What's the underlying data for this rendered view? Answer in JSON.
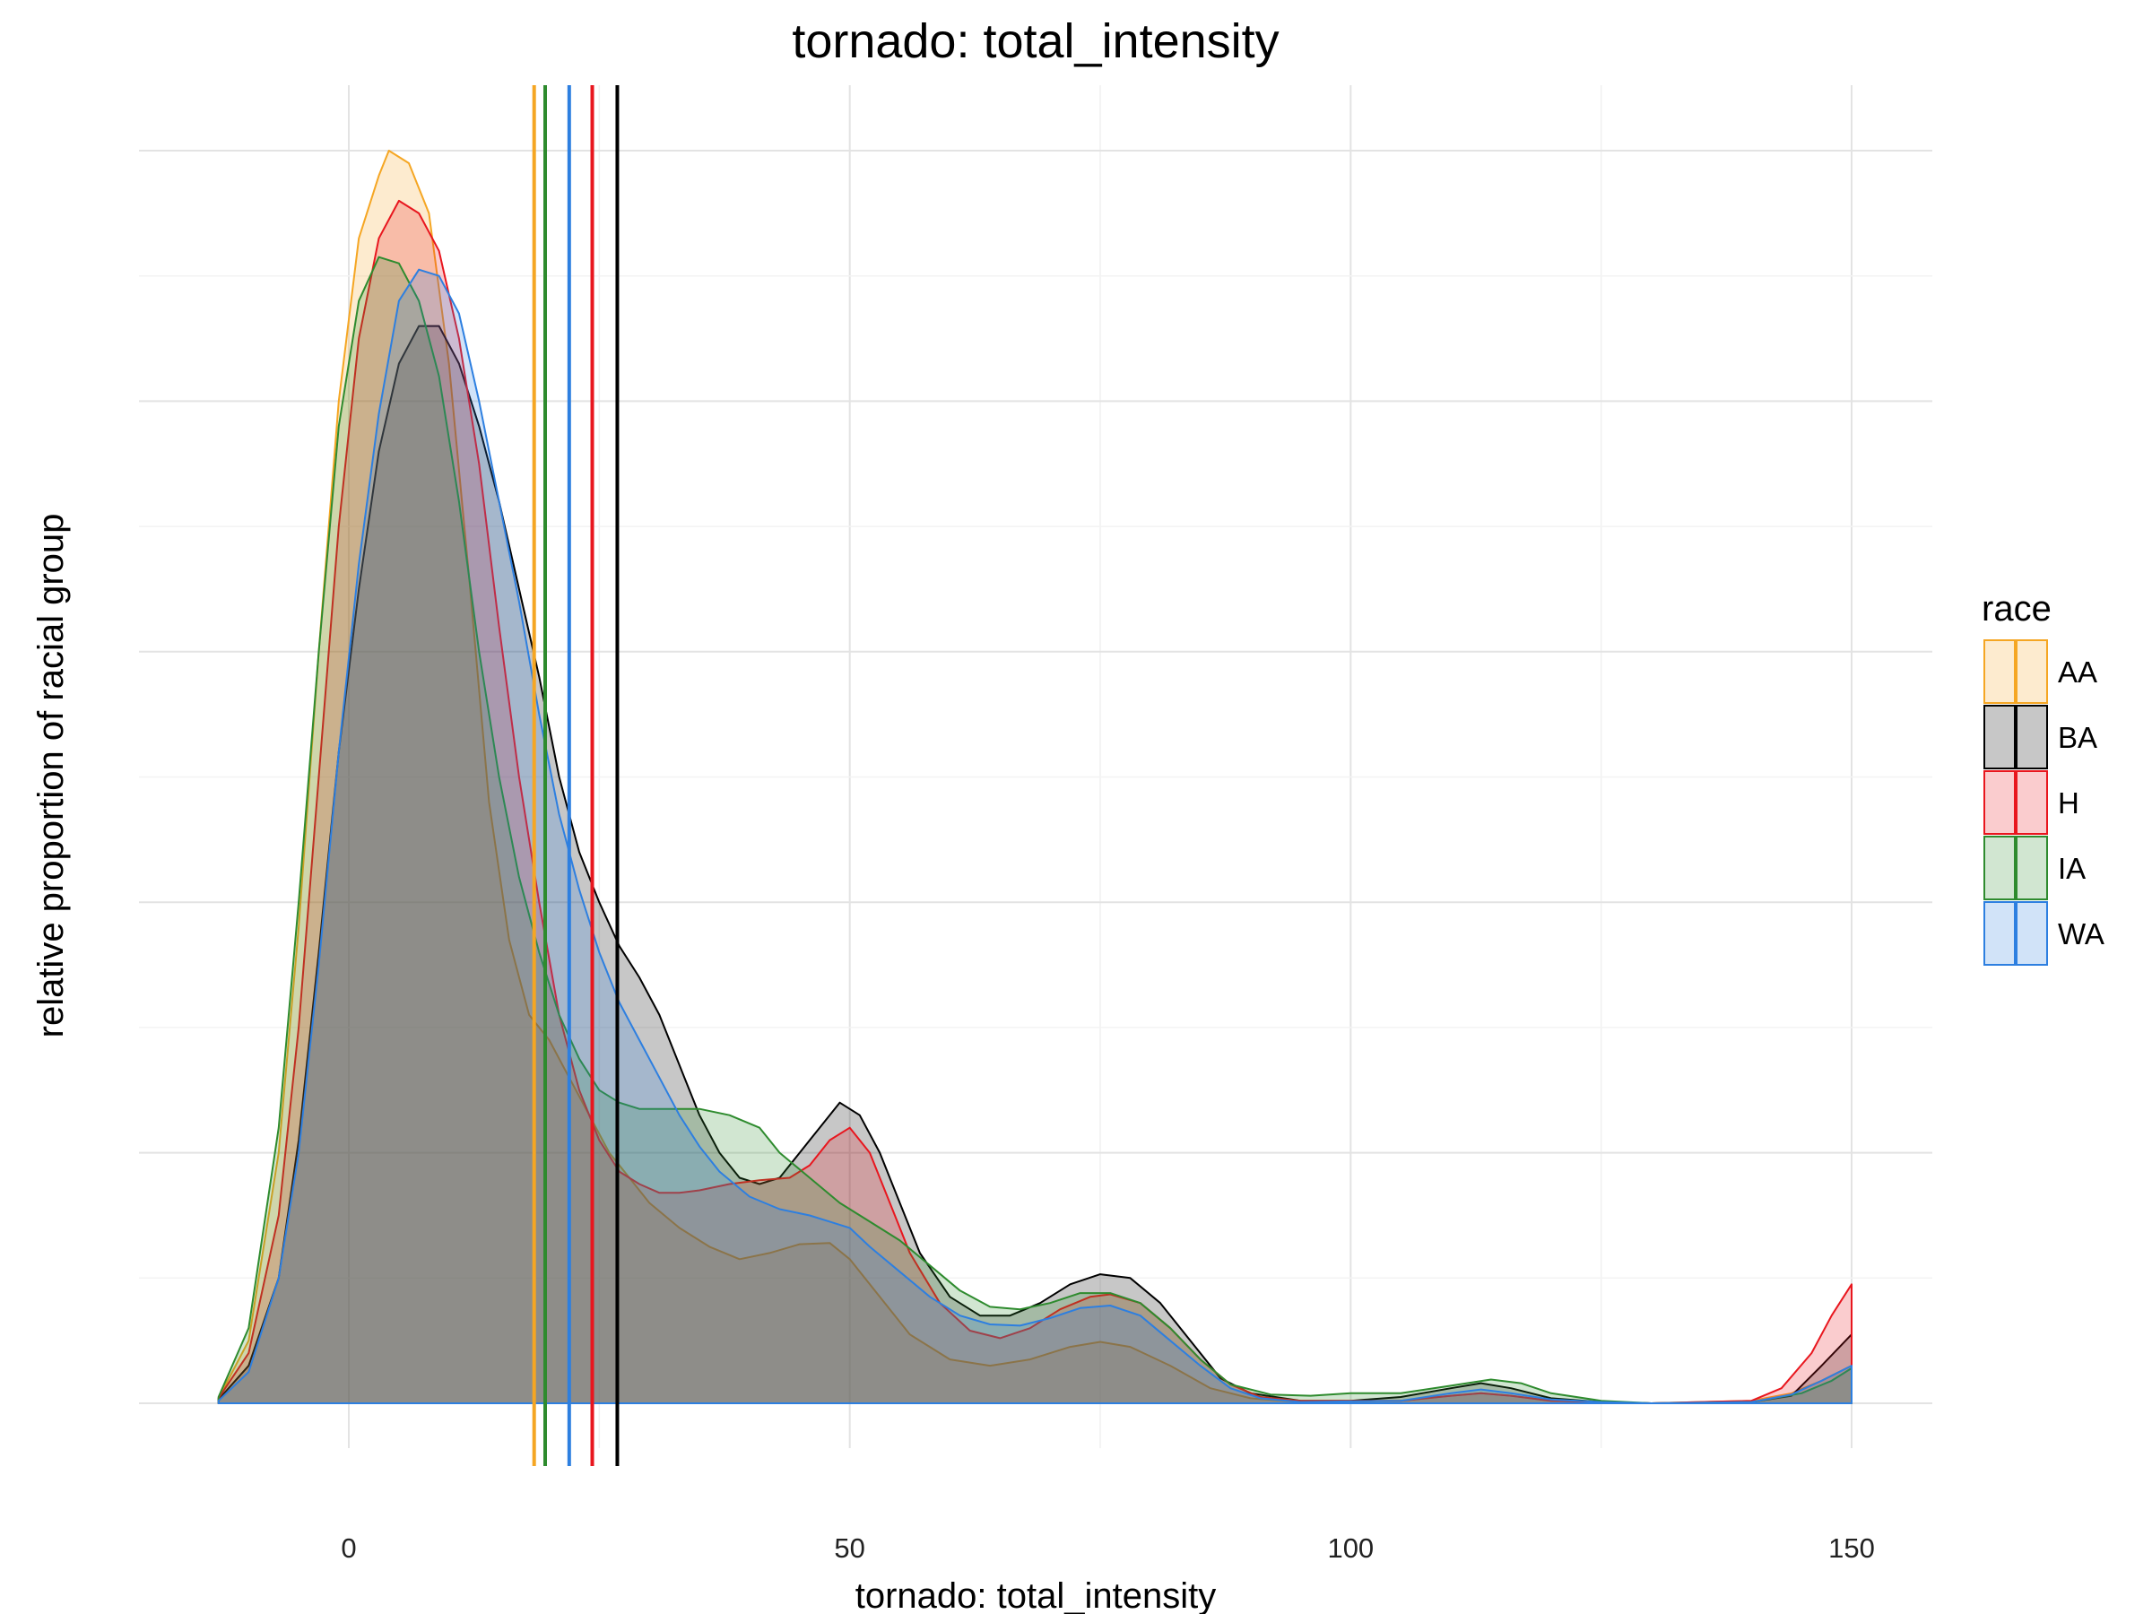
{
  "chart_data": {
    "type": "area",
    "title": "tornado: total_intensity",
    "xlabel": "tornado: total_intensity",
    "ylabel": "relative proportion of racial group",
    "xlim": [
      -21,
      158
    ],
    "ylim": [
      0,
      1.0
    ],
    "x_ticks": [
      0,
      50,
      100,
      150
    ],
    "x_tick_labels": [
      "0",
      "50",
      "100",
      "150"
    ],
    "y_ticks_labeled": false,
    "grid": true,
    "legend": {
      "title": "race",
      "position": "right"
    },
    "series": [
      {
        "name": "AA",
        "color": "#F5A623",
        "mean": 18.5,
        "points": [
          [
            -13,
            0.004
          ],
          [
            -10,
            0.05
          ],
          [
            -7,
            0.2
          ],
          [
            -5,
            0.38
          ],
          [
            -3,
            0.6
          ],
          [
            -1,
            0.8
          ],
          [
            1,
            0.93
          ],
          [
            3,
            0.98
          ],
          [
            4,
            1.0
          ],
          [
            6,
            0.99
          ],
          [
            8,
            0.95
          ],
          [
            10,
            0.83
          ],
          [
            12,
            0.66
          ],
          [
            14,
            0.48
          ],
          [
            16,
            0.37
          ],
          [
            18,
            0.31
          ],
          [
            20,
            0.29
          ],
          [
            22,
            0.26
          ],
          [
            24,
            0.23
          ],
          [
            26,
            0.2
          ],
          [
            28,
            0.18
          ],
          [
            30,
            0.16
          ],
          [
            33,
            0.14
          ],
          [
            36,
            0.125
          ],
          [
            39,
            0.115
          ],
          [
            42,
            0.12
          ],
          [
            45,
            0.127
          ],
          [
            48,
            0.128
          ],
          [
            50,
            0.115
          ],
          [
            53,
            0.085
          ],
          [
            56,
            0.055
          ],
          [
            60,
            0.035
          ],
          [
            64,
            0.03
          ],
          [
            68,
            0.035
          ],
          [
            72,
            0.045
          ],
          [
            75,
            0.049
          ],
          [
            78,
            0.045
          ],
          [
            82,
            0.03
          ],
          [
            86,
            0.012
          ],
          [
            90,
            0.004
          ],
          [
            95,
            0.001
          ],
          [
            105,
            0.002
          ],
          [
            110,
            0.006
          ],
          [
            113,
            0.008
          ],
          [
            116,
            0.006
          ],
          [
            120,
            0.002
          ],
          [
            130,
            0
          ],
          [
            140,
            0.002
          ],
          [
            144,
            0.008
          ],
          [
            147,
            0.018
          ],
          [
            150,
            0.03
          ],
          [
            150,
            0
          ]
        ]
      },
      {
        "name": "BA",
        "color": "#000000",
        "mean": 26.8,
        "points": [
          [
            -13,
            0.003
          ],
          [
            -10,
            0.03
          ],
          [
            -7,
            0.1
          ],
          [
            -5,
            0.21
          ],
          [
            -3,
            0.36
          ],
          [
            -1,
            0.52
          ],
          [
            1,
            0.65
          ],
          [
            3,
            0.76
          ],
          [
            5,
            0.83
          ],
          [
            7,
            0.86
          ],
          [
            9,
            0.86
          ],
          [
            11,
            0.83
          ],
          [
            13,
            0.78
          ],
          [
            15,
            0.72
          ],
          [
            17,
            0.65
          ],
          [
            19,
            0.58
          ],
          [
            21,
            0.5
          ],
          [
            23,
            0.44
          ],
          [
            25,
            0.4
          ],
          [
            27,
            0.365
          ],
          [
            29,
            0.34
          ],
          [
            31,
            0.31
          ],
          [
            33,
            0.27
          ],
          [
            35,
            0.23
          ],
          [
            37,
            0.2
          ],
          [
            39,
            0.18
          ],
          [
            41,
            0.175
          ],
          [
            43,
            0.18
          ],
          [
            45,
            0.2
          ],
          [
            47,
            0.22
          ],
          [
            49,
            0.24
          ],
          [
            51,
            0.23
          ],
          [
            53,
            0.2
          ],
          [
            55,
            0.16
          ],
          [
            57,
            0.12
          ],
          [
            60,
            0.085
          ],
          [
            63,
            0.07
          ],
          [
            66,
            0.07
          ],
          [
            69,
            0.08
          ],
          [
            72,
            0.095
          ],
          [
            75,
            0.103
          ],
          [
            78,
            0.1
          ],
          [
            81,
            0.08
          ],
          [
            84,
            0.05
          ],
          [
            87,
            0.02
          ],
          [
            90,
            0.008
          ],
          [
            95,
            0.002
          ],
          [
            100,
            0.002
          ],
          [
            105,
            0.005
          ],
          [
            110,
            0.012
          ],
          [
            113,
            0.016
          ],
          [
            116,
            0.012
          ],
          [
            120,
            0.004
          ],
          [
            125,
            0.001
          ],
          [
            130,
            0
          ],
          [
            140,
            0.001
          ],
          [
            144,
            0.006
          ],
          [
            147,
            0.03
          ],
          [
            150,
            0.055
          ],
          [
            150,
            0
          ]
        ]
      },
      {
        "name": "H",
        "color": "#E8161E",
        "mean": 24.3,
        "points": [
          [
            -13,
            0.004
          ],
          [
            -10,
            0.04
          ],
          [
            -7,
            0.15
          ],
          [
            -5,
            0.3
          ],
          [
            -3,
            0.5
          ],
          [
            -1,
            0.7
          ],
          [
            1,
            0.85
          ],
          [
            3,
            0.93
          ],
          [
            5,
            0.96
          ],
          [
            7,
            0.95
          ],
          [
            9,
            0.92
          ],
          [
            11,
            0.85
          ],
          [
            13,
            0.75
          ],
          [
            15,
            0.62
          ],
          [
            17,
            0.5
          ],
          [
            19,
            0.4
          ],
          [
            21,
            0.31
          ],
          [
            23,
            0.25
          ],
          [
            25,
            0.21
          ],
          [
            27,
            0.185
          ],
          [
            29,
            0.175
          ],
          [
            31,
            0.168
          ],
          [
            33,
            0.168
          ],
          [
            35,
            0.17
          ],
          [
            38,
            0.175
          ],
          [
            41,
            0.178
          ],
          [
            44,
            0.18
          ],
          [
            46,
            0.19
          ],
          [
            48,
            0.21
          ],
          [
            50,
            0.22
          ],
          [
            52,
            0.2
          ],
          [
            54,
            0.16
          ],
          [
            56,
            0.12
          ],
          [
            59,
            0.08
          ],
          [
            62,
            0.058
          ],
          [
            65,
            0.052
          ],
          [
            68,
            0.06
          ],
          [
            71,
            0.075
          ],
          [
            74,
            0.085
          ],
          [
            76,
            0.087
          ],
          [
            79,
            0.08
          ],
          [
            82,
            0.06
          ],
          [
            85,
            0.035
          ],
          [
            88,
            0.015
          ],
          [
            91,
            0.005
          ],
          [
            95,
            0.002
          ],
          [
            105,
            0.002
          ],
          [
            110,
            0.006
          ],
          [
            113,
            0.008
          ],
          [
            116,
            0.006
          ],
          [
            120,
            0.002
          ],
          [
            130,
            0
          ],
          [
            140,
            0.002
          ],
          [
            143,
            0.012
          ],
          [
            146,
            0.04
          ],
          [
            148,
            0.07
          ],
          [
            150,
            0.095
          ],
          [
            150,
            0
          ]
        ]
      },
      {
        "name": "IA",
        "color": "#2E8B2E",
        "mean": 19.6,
        "points": [
          [
            -13,
            0.005
          ],
          [
            -10,
            0.06
          ],
          [
            -7,
            0.22
          ],
          [
            -5,
            0.4
          ],
          [
            -3,
            0.6
          ],
          [
            -1,
            0.78
          ],
          [
            1,
            0.88
          ],
          [
            3,
            0.915
          ],
          [
            5,
            0.91
          ],
          [
            7,
            0.88
          ],
          [
            9,
            0.82
          ],
          [
            11,
            0.72
          ],
          [
            13,
            0.6
          ],
          [
            15,
            0.5
          ],
          [
            17,
            0.42
          ],
          [
            19,
            0.36
          ],
          [
            21,
            0.31
          ],
          [
            23,
            0.275
          ],
          [
            25,
            0.25
          ],
          [
            27,
            0.24
          ],
          [
            29,
            0.235
          ],
          [
            32,
            0.235
          ],
          [
            35,
            0.235
          ],
          [
            38,
            0.23
          ],
          [
            41,
            0.22
          ],
          [
            43,
            0.2
          ],
          [
            46,
            0.18
          ],
          [
            49,
            0.16
          ],
          [
            52,
            0.145
          ],
          [
            55,
            0.13
          ],
          [
            58,
            0.11
          ],
          [
            61,
            0.09
          ],
          [
            64,
            0.077
          ],
          [
            67,
            0.075
          ],
          [
            70,
            0.08
          ],
          [
            73,
            0.088
          ],
          [
            76,
            0.088
          ],
          [
            79,
            0.08
          ],
          [
            82,
            0.06
          ],
          [
            85,
            0.035
          ],
          [
            88,
            0.015
          ],
          [
            92,
            0.007
          ],
          [
            96,
            0.006
          ],
          [
            100,
            0.008
          ],
          [
            105,
            0.008
          ],
          [
            110,
            0.014
          ],
          [
            114,
            0.019
          ],
          [
            117,
            0.016
          ],
          [
            120,
            0.008
          ],
          [
            125,
            0.002
          ],
          [
            130,
            0
          ],
          [
            140,
            0.001
          ],
          [
            145,
            0.008
          ],
          [
            148,
            0.018
          ],
          [
            150,
            0.028
          ],
          [
            150,
            0
          ]
        ]
      },
      {
        "name": "WA",
        "color": "#2D7FE0",
        "mean": 22.0,
        "points": [
          [
            -13,
            0.002
          ],
          [
            -10,
            0.025
          ],
          [
            -7,
            0.1
          ],
          [
            -5,
            0.2
          ],
          [
            -3,
            0.35
          ],
          [
            -1,
            0.52
          ],
          [
            1,
            0.67
          ],
          [
            3,
            0.79
          ],
          [
            5,
            0.88
          ],
          [
            7,
            0.905
          ],
          [
            9,
            0.9
          ],
          [
            11,
            0.87
          ],
          [
            13,
            0.8
          ],
          [
            15,
            0.72
          ],
          [
            17,
            0.64
          ],
          [
            19,
            0.55
          ],
          [
            21,
            0.47
          ],
          [
            23,
            0.41
          ],
          [
            25,
            0.36
          ],
          [
            27,
            0.32
          ],
          [
            29,
            0.29
          ],
          [
            31,
            0.26
          ],
          [
            33,
            0.23
          ],
          [
            35,
            0.205
          ],
          [
            37,
            0.185
          ],
          [
            40,
            0.165
          ],
          [
            43,
            0.155
          ],
          [
            46,
            0.15
          ],
          [
            48,
            0.145
          ],
          [
            50,
            0.14
          ],
          [
            52,
            0.125
          ],
          [
            55,
            0.105
          ],
          [
            58,
            0.085
          ],
          [
            61,
            0.07
          ],
          [
            64,
            0.063
          ],
          [
            67,
            0.062
          ],
          [
            70,
            0.068
          ],
          [
            73,
            0.076
          ],
          [
            76,
            0.078
          ],
          [
            79,
            0.07
          ],
          [
            82,
            0.05
          ],
          [
            85,
            0.03
          ],
          [
            88,
            0.012
          ],
          [
            91,
            0.004
          ],
          [
            95,
            0.001
          ],
          [
            105,
            0.002
          ],
          [
            110,
            0.008
          ],
          [
            113,
            0.011
          ],
          [
            116,
            0.008
          ],
          [
            120,
            0.003
          ],
          [
            125,
            0.001
          ],
          [
            130,
            0
          ],
          [
            140,
            0.001
          ],
          [
            144,
            0.007
          ],
          [
            147,
            0.018
          ],
          [
            150,
            0.03
          ],
          [
            150,
            0
          ]
        ]
      }
    ]
  }
}
